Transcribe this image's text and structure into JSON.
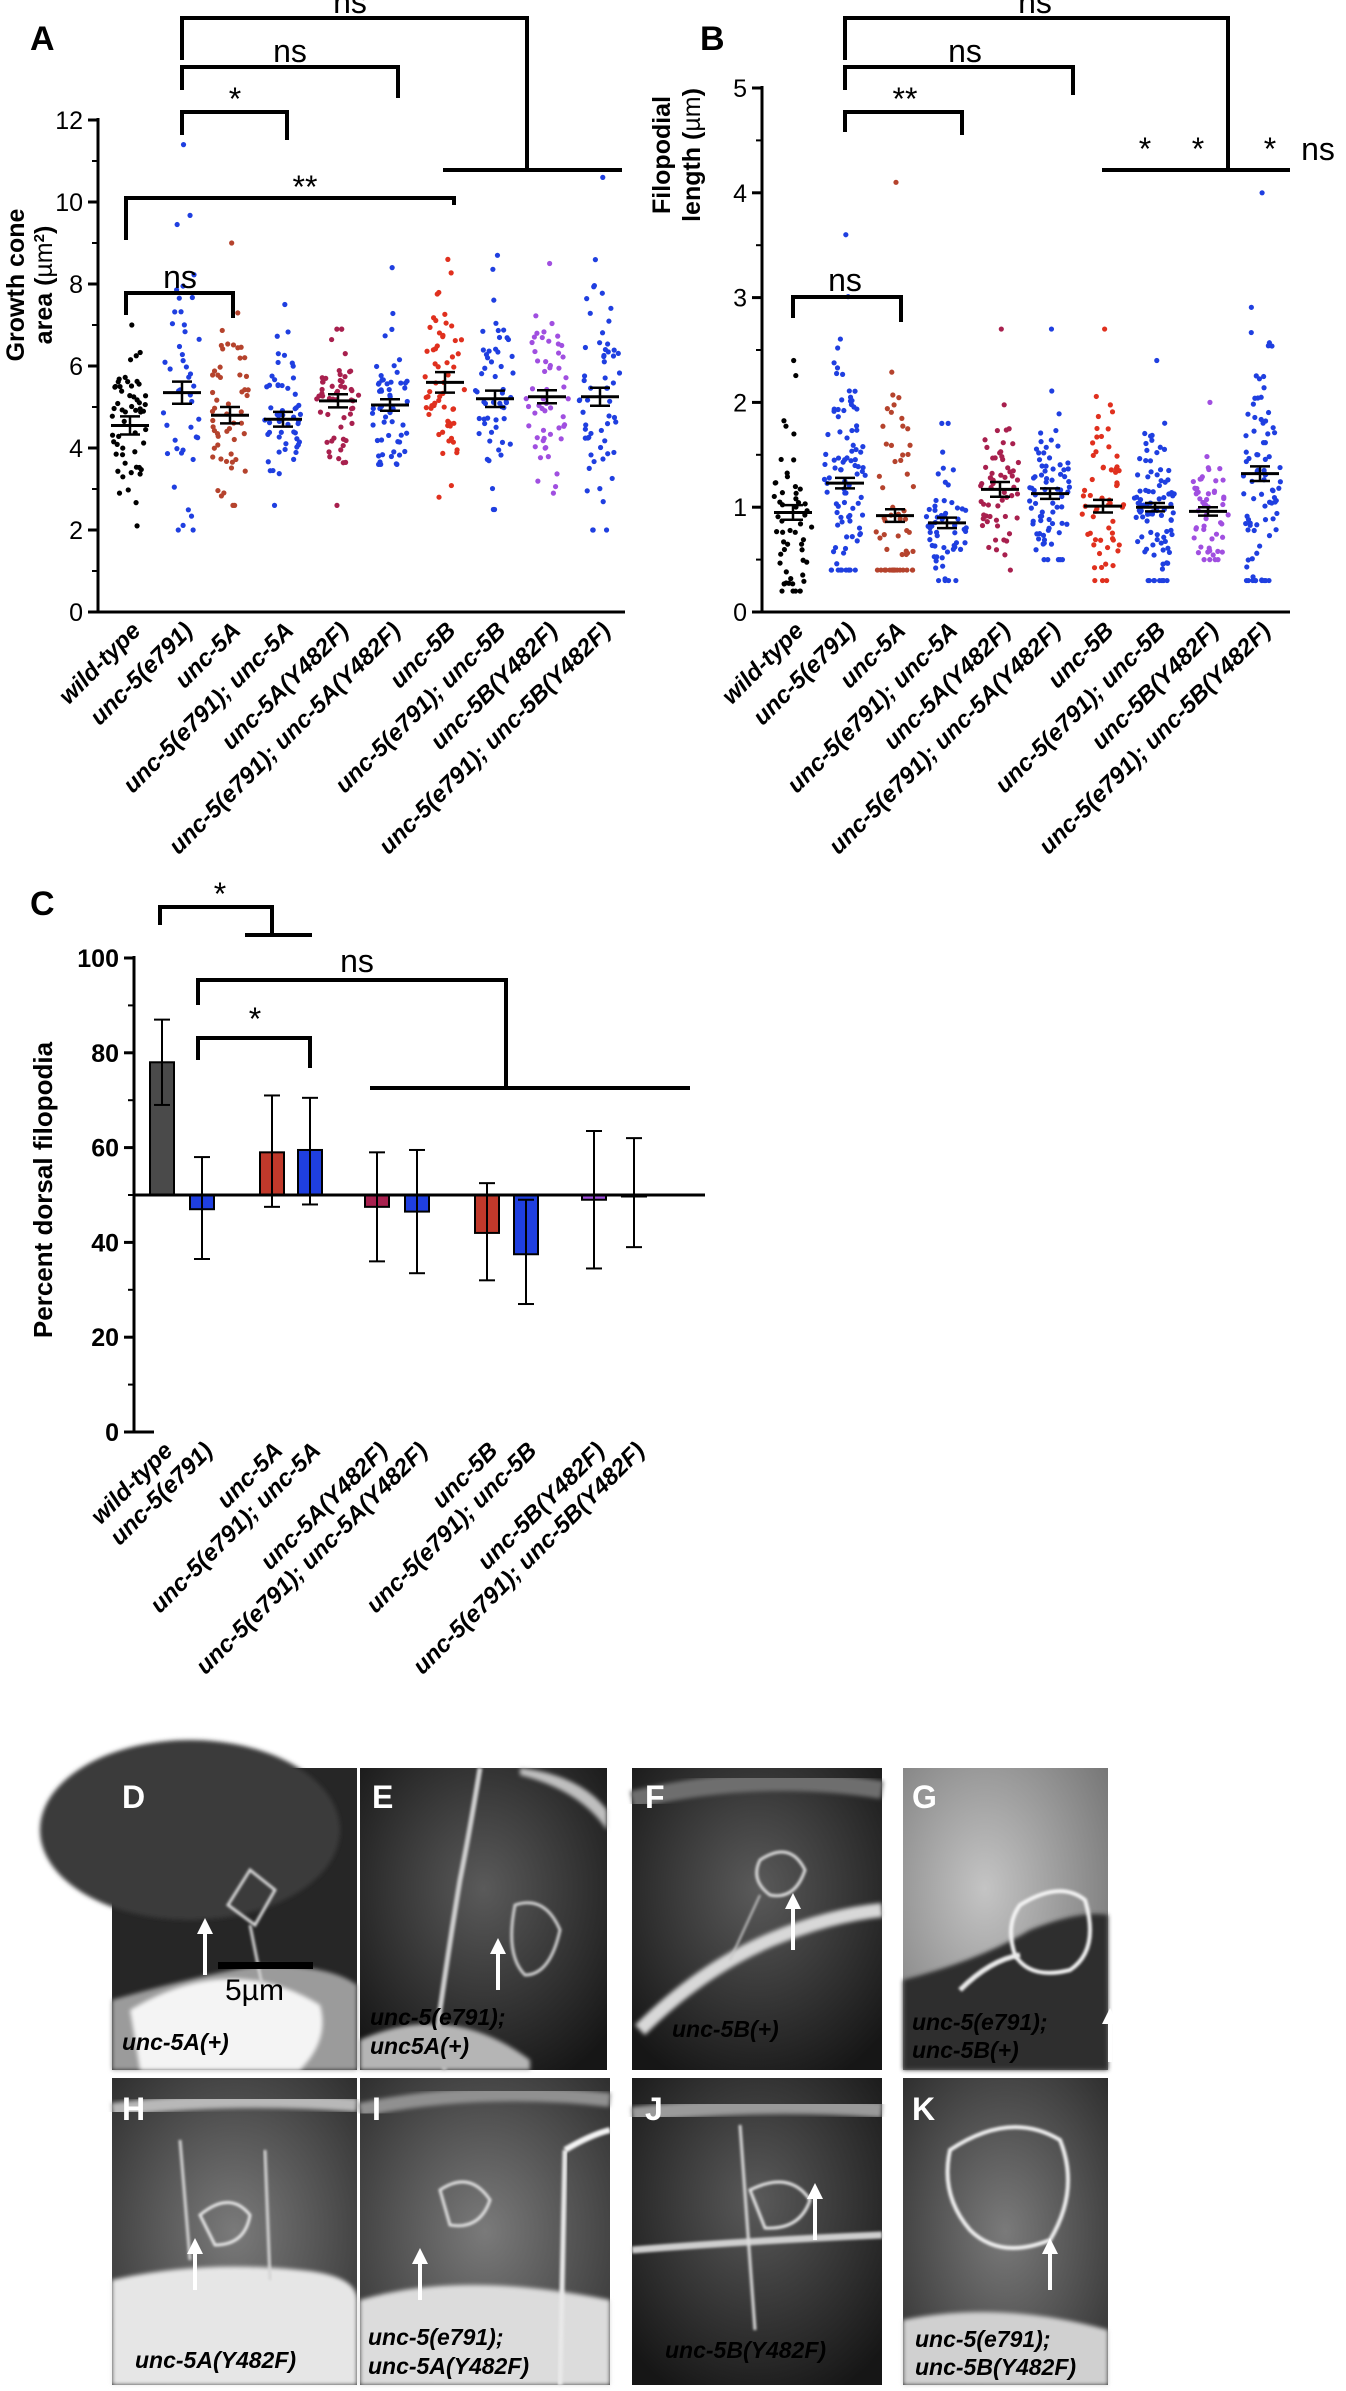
{
  "colors": {
    "black": "#000000",
    "blue": "#1f3fe0",
    "brown_red": "#b5432d",
    "crimson": "#a8204e",
    "red": "#e0301e",
    "purple": "#a04fe0",
    "bar_dark": "#4a4a4a",
    "bar_red": "#c0392b",
    "bar_crimson": "#a8204e",
    "bar_blue": "#1f3fe0"
  },
  "genotypes": [
    "wild-type",
    "unc-5(e791)",
    "unc-5A",
    "unc-5(e791); unc-5A",
    "unc-5A(Y482F)",
    "unc-5(e791); unc-5A(Y482F)",
    "unc-5B",
    "unc-5(e791); unc-5B",
    "unc-5B(Y482F)",
    "unc-5(e791); unc-5B(Y482F)"
  ],
  "chart_data": [
    {
      "panel": "A",
      "type": "scatter",
      "ylabel": "Growth cone area (µm²)",
      "ylabel_line1": "Growth cone",
      "ylabel_line2_prefix": "area (",
      "ylabel_unit": "µm",
      "ylabel_sup": "2",
      "ylabel_suffix": ")",
      "ylim": [
        0,
        12
      ],
      "yticks": [
        "0",
        "2",
        "4",
        "6",
        "8",
        "10",
        "12"
      ],
      "means": [
        4.55,
        5.35,
        4.8,
        4.7,
        5.15,
        5.05,
        5.6,
        5.2,
        5.25,
        5.25
      ],
      "sems": [
        0.22,
        0.27,
        0.2,
        0.18,
        0.16,
        0.14,
        0.25,
        0.2,
        0.16,
        0.22
      ],
      "spread": [
        [
          2.1,
          7.0
        ],
        [
          2.0,
          11.4
        ],
        [
          2.6,
          9.0
        ],
        [
          2.6,
          7.5
        ],
        [
          2.6,
          6.9
        ],
        [
          3.6,
          8.4
        ],
        [
          2.8,
          8.6
        ],
        [
          2.5,
          8.7
        ],
        [
          2.9,
          8.5
        ],
        [
          2.0,
          10.6
        ]
      ],
      "counts": [
        55,
        45,
        55,
        55,
        55,
        55,
        60,
        55,
        55,
        60
      ],
      "colors": [
        "#000000",
        "#1f3fe0",
        "#b5432d",
        "#1f3fe0",
        "#a8204e",
        "#1f3fe0",
        "#e0301e",
        "#1f3fe0",
        "#a04fe0",
        "#1f3fe0"
      ],
      "significance": [
        {
          "label": "ns",
          "from": 1,
          "to": 9
        },
        {
          "label": "ns",
          "from": 1,
          "to": 5
        },
        {
          "label": "*",
          "from": 1,
          "to": 3
        },
        {
          "label": "**",
          "from": 0,
          "to": 6
        },
        {
          "label": "ns",
          "from": 0,
          "to": 2
        }
      ]
    },
    {
      "panel": "B",
      "type": "scatter",
      "ylabel": "Filopodial length (µm)",
      "ylabel_line1": "Filopodial",
      "ylabel_line2_prefix": "length  (",
      "ylabel_unit": "µm",
      "ylabel_suffix": ")",
      "ylim": [
        0,
        5
      ],
      "yticks": [
        "0",
        "1",
        "2",
        "3",
        "4",
        "5"
      ],
      "means": [
        0.95,
        1.23,
        0.92,
        0.85,
        1.17,
        1.13,
        1.01,
        1.0,
        0.96,
        1.32
      ],
      "sems": [
        0.07,
        0.05,
        0.06,
        0.05,
        0.07,
        0.05,
        0.06,
        0.04,
        0.04,
        0.07
      ],
      "spread": [
        [
          0.2,
          2.4
        ],
        [
          0.4,
          3.6
        ],
        [
          0.4,
          4.1
        ],
        [
          0.3,
          1.8
        ],
        [
          0.4,
          2.7
        ],
        [
          0.5,
          2.7
        ],
        [
          0.3,
          2.7
        ],
        [
          0.3,
          2.4
        ],
        [
          0.5,
          2.0
        ],
        [
          0.3,
          4.0
        ]
      ],
      "counts": [
        55,
        95,
        60,
        60,
        60,
        75,
        60,
        90,
        55,
        85
      ],
      "colors": [
        "#000000",
        "#1f3fe0",
        "#b5432d",
        "#1f3fe0",
        "#a8204e",
        "#1f3fe0",
        "#e0301e",
        "#1f3fe0",
        "#a04fe0",
        "#1f3fe0"
      ],
      "significance": [
        {
          "label": "ns",
          "from": 1,
          "to": 9
        },
        {
          "label": "ns",
          "from": 1,
          "to": 5
        },
        {
          "label": "**",
          "from": 1,
          "to": 3
        },
        {
          "label": "ns",
          "from": 0,
          "to": 2
        }
      ],
      "group_stars": [
        "*",
        "*",
        "*",
        "ns"
      ]
    },
    {
      "panel": "C",
      "type": "bar",
      "ylabel": "Percent dorsal filopodia",
      "ylim": [
        0,
        100
      ],
      "yticks": [
        "0",
        "20",
        "40",
        "60",
        "80",
        "100"
      ],
      "baseline": 50,
      "values": [
        78,
        47,
        59,
        59.5,
        47.5,
        46.5,
        42,
        37.5,
        49,
        50
      ],
      "error_up": [
        87,
        58,
        71,
        70.5,
        59,
        59.5,
        52.5,
        49,
        63.5,
        62
      ],
      "error_down": [
        69,
        36.5,
        47.5,
        48,
        36,
        33.5,
        32,
        27,
        34.5,
        39
      ],
      "bar_colors": [
        "#4a4a4a",
        "#1f3fe0",
        "#c0392b",
        "#1f3fe0",
        "#a8204e",
        "#1f3fe0",
        "#c0392b",
        "#1f3fe0",
        "#a04fe0",
        "#1f3fe0"
      ],
      "significance": [
        {
          "label": "*",
          "from": 0,
          "to": 2
        },
        {
          "label": "ns",
          "from": 1,
          "to": 6
        },
        {
          "label": "*",
          "from": 1,
          "to": 3
        }
      ]
    }
  ],
  "panels": {
    "A": "A",
    "B": "B",
    "C": "C"
  },
  "scale_bar_label": "5µm",
  "micrographs": [
    {
      "letter": "D",
      "label_lines": [
        "unc-5A(+)"
      ]
    },
    {
      "letter": "E",
      "label_lines": [
        "unc-5(e791);",
        "unc5A(+)"
      ]
    },
    {
      "letter": "F",
      "label_lines": [
        "unc-5B(+)"
      ]
    },
    {
      "letter": "G",
      "label_lines": [
        "unc-5(e791);",
        "unc-5B(+)"
      ]
    },
    {
      "letter": "H",
      "label_lines": [
        "unc-5A(Y482F)"
      ]
    },
    {
      "letter": "I",
      "label_lines": [
        "unc-5(e791);",
        "unc-5A(Y482F)"
      ]
    },
    {
      "letter": "J",
      "label_lines": [
        "unc-5B(Y482F)"
      ]
    },
    {
      "letter": "K",
      "label_lines": [
        "unc-5(e791);",
        "unc-5B(Y482F)"
      ]
    }
  ]
}
